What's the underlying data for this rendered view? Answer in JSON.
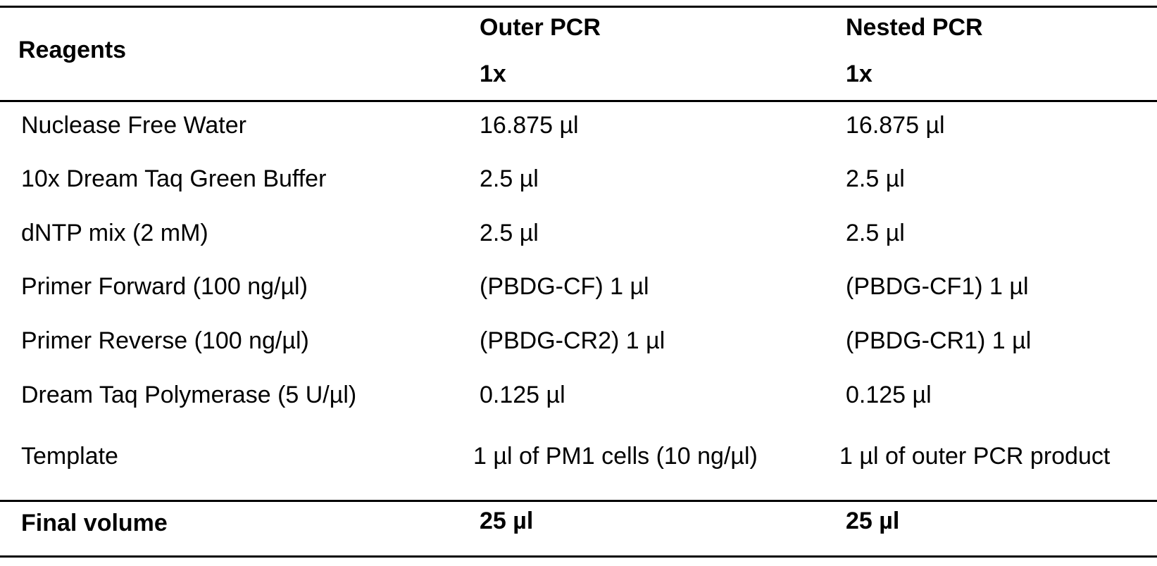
{
  "table": {
    "header": {
      "reagents": "Reagents",
      "outer_title": "Outer PCR",
      "outer_sub": "1x",
      "nested_title": "Nested PCR",
      "nested_sub": "1x"
    },
    "rows": [
      {
        "reagent": "Nuclease Free Water",
        "outer": "16.875 µl",
        "nested": "16.875 µl"
      },
      {
        "reagent": "10x Dream Taq Green Buffer",
        "outer": "2.5 µl",
        "nested": "2.5 µl"
      },
      {
        "reagent": "dNTP mix (2 mM)",
        "outer": "2.5 µl",
        "nested": "2.5 µl"
      },
      {
        "reagent": "Primer Forward (100 ng/µl)",
        "outer": "(PBDG-CF) 1 µl",
        "nested": "(PBDG-CF1) 1 µl"
      },
      {
        "reagent": "Primer Reverse (100 ng/µl)",
        "outer": "(PBDG-CR2) 1 µl",
        "nested": "(PBDG-CR1) 1 µl"
      },
      {
        "reagent": "Dream Taq Polymerase (5 U/µl)",
        "outer": "0.125 µl",
        "nested": "0.125 µl"
      },
      {
        "reagent": "Template",
        "outer": "1 µl of PM1 cells (10 ng/µl)",
        "nested": "1 µl of outer PCR product"
      }
    ],
    "footer": {
      "label": "Final volume",
      "outer": "25 µl",
      "nested": "25 µl"
    }
  }
}
